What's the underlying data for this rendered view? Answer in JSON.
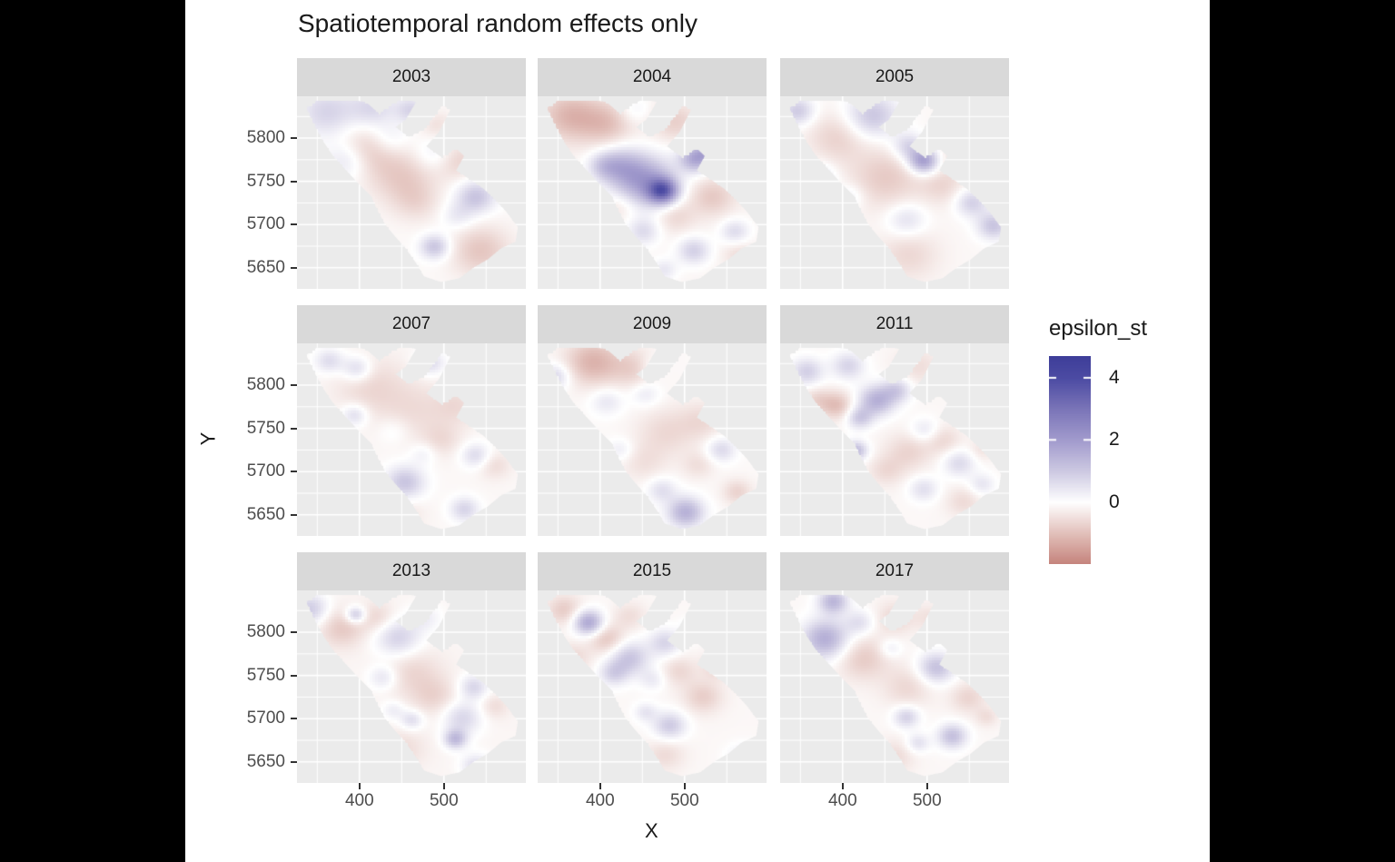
{
  "title": "Spatiotemporal random effects only",
  "theme": {
    "page_background": "#000000",
    "canvas_background": "#ffffff",
    "panel_background": "#ebebeb",
    "strip_background": "#d9d9d9",
    "grid_color": "#ffffff",
    "tick_text_color": "#4d4d4d",
    "tick_mark_color": "#333333",
    "text_color": "#1a1a1a"
  },
  "axes": {
    "x_label": "X",
    "y_label": "Y",
    "x_ticks": [
      {
        "value": 400,
        "label": "400"
      },
      {
        "value": 500,
        "label": "500"
      }
    ],
    "x_minor": [
      350,
      450,
      550
    ],
    "x_range": [
      326,
      597
    ],
    "y_ticks": [
      {
        "value": 5800,
        "label": "5800"
      },
      {
        "value": 5750,
        "label": "5750"
      },
      {
        "value": 5700,
        "label": "5700"
      },
      {
        "value": 5650,
        "label": "5650"
      }
    ],
    "y_minor": [
      5625,
      5675,
      5725,
      5775,
      5825
    ],
    "y_range": [
      5625.6,
      5848.4
    ]
  },
  "legend": {
    "title": "epsilon_st",
    "ticks": [
      {
        "value": 4,
        "label": "4"
      },
      {
        "value": 2,
        "label": "2"
      },
      {
        "value": 0,
        "label": "0"
      }
    ],
    "range": [
      -2.0,
      4.7
    ]
  },
  "chart_data": {
    "type": "heatmap",
    "title": "Spatiotemporal random effects only",
    "xlabel": "X",
    "ylabel": "Y",
    "fill_variable": "epsilon_st",
    "fill_limits": [
      -2.0,
      4.7
    ],
    "color_stops": [
      [
        -2.0,
        "#c5837c"
      ],
      [
        -1.0,
        "#e2c0ba"
      ],
      [
        0.0,
        "#ffffff"
      ],
      [
        1.0,
        "#cdc9e2"
      ],
      [
        2.0,
        "#a29bcd"
      ],
      [
        3.0,
        "#7b75b8"
      ],
      [
        4.0,
        "#4c4ba3"
      ],
      [
        4.7,
        "#3e3e99"
      ]
    ],
    "facets": [
      "2003",
      "2004",
      "2005",
      "2007",
      "2009",
      "2011",
      "2013",
      "2015",
      "2017"
    ],
    "region_polygon": [
      [
        0.04,
        0.06
      ],
      [
        0.09,
        0.02
      ],
      [
        0.2,
        0.015
      ],
      [
        0.3,
        0.03
      ],
      [
        0.36,
        0.09
      ],
      [
        0.41,
        0.04
      ],
      [
        0.465,
        0.015
      ],
      [
        0.52,
        0.03
      ],
      [
        0.475,
        0.12
      ],
      [
        0.43,
        0.16
      ],
      [
        0.49,
        0.21
      ],
      [
        0.555,
        0.17
      ],
      [
        0.6,
        0.1
      ],
      [
        0.635,
        0.045
      ],
      [
        0.67,
        0.07
      ],
      [
        0.62,
        0.185
      ],
      [
        0.565,
        0.26
      ],
      [
        0.63,
        0.315
      ],
      [
        0.695,
        0.27
      ],
      [
        0.73,
        0.31
      ],
      [
        0.695,
        0.385
      ],
      [
        0.755,
        0.43
      ],
      [
        0.815,
        0.48
      ],
      [
        0.87,
        0.54
      ],
      [
        0.915,
        0.6
      ],
      [
        0.965,
        0.68
      ],
      [
        0.955,
        0.755
      ],
      [
        0.89,
        0.79
      ],
      [
        0.835,
        0.845
      ],
      [
        0.77,
        0.89
      ],
      [
        0.71,
        0.945
      ],
      [
        0.63,
        0.965
      ],
      [
        0.555,
        0.935
      ],
      [
        0.52,
        0.865
      ],
      [
        0.475,
        0.79
      ],
      [
        0.43,
        0.73
      ],
      [
        0.385,
        0.665
      ],
      [
        0.35,
        0.59
      ],
      [
        0.325,
        0.52
      ],
      [
        0.27,
        0.455
      ],
      [
        0.22,
        0.39
      ],
      [
        0.16,
        0.315
      ],
      [
        0.115,
        0.235
      ],
      [
        0.075,
        0.15
      ]
    ],
    "fields": {
      "2003": {
        "base": -0.1,
        "blobs": [
          [
            0.13,
            0.08,
            0.09,
            0.9
          ],
          [
            0.33,
            0.06,
            0.07,
            0.8
          ],
          [
            0.5,
            0.07,
            0.05,
            0.9
          ],
          [
            0.22,
            0.33,
            0.07,
            0.8
          ],
          [
            0.4,
            0.22,
            0.06,
            0.5
          ],
          [
            0.6,
            0.3,
            0.06,
            0.5
          ],
          [
            0.78,
            0.52,
            0.06,
            1.2
          ],
          [
            0.6,
            0.78,
            0.045,
            1.2
          ],
          [
            0.7,
            0.62,
            0.05,
            0.5
          ],
          [
            0.3,
            0.28,
            0.09,
            -0.8
          ],
          [
            0.46,
            0.42,
            0.1,
            -0.7
          ],
          [
            0.7,
            0.33,
            0.07,
            -0.6
          ],
          [
            0.8,
            0.8,
            0.09,
            -0.8
          ],
          [
            0.52,
            0.55,
            0.07,
            -0.4
          ],
          [
            0.6,
            0.14,
            0.05,
            -0.4
          ]
        ]
      },
      "2004": {
        "base": -0.15,
        "blobs": [
          [
            0.47,
            0.44,
            0.09,
            2.0
          ],
          [
            0.545,
            0.49,
            0.045,
            3.0
          ],
          [
            0.36,
            0.36,
            0.07,
            1.2
          ],
          [
            0.69,
            0.32,
            0.05,
            1.9
          ],
          [
            0.76,
            0.28,
            0.04,
            1.2
          ],
          [
            0.285,
            0.36,
            0.05,
            0.8
          ],
          [
            0.46,
            0.7,
            0.05,
            0.8
          ],
          [
            0.68,
            0.8,
            0.05,
            1.0
          ],
          [
            0.86,
            0.7,
            0.045,
            0.8
          ],
          [
            0.55,
            0.9,
            0.04,
            0.6
          ],
          [
            0.42,
            0.07,
            0.05,
            0.4
          ],
          [
            0.14,
            0.1,
            0.09,
            -1.0
          ],
          [
            0.3,
            0.14,
            0.08,
            -0.8
          ],
          [
            0.6,
            0.13,
            0.07,
            -0.6
          ],
          [
            0.76,
            0.52,
            0.07,
            -0.7
          ],
          [
            0.6,
            0.62,
            0.06,
            -0.5
          ],
          [
            0.36,
            0.57,
            0.05,
            -0.4
          ],
          [
            0.88,
            0.82,
            0.05,
            -0.4
          ]
        ]
      },
      "2005": {
        "base": -0.12,
        "blobs": [
          [
            0.075,
            0.075,
            0.05,
            1.1
          ],
          [
            0.4,
            0.1,
            0.08,
            1.2
          ],
          [
            0.625,
            0.335,
            0.045,
            2.1
          ],
          [
            0.56,
            0.26,
            0.05,
            1.0
          ],
          [
            0.165,
            0.42,
            0.05,
            0.9
          ],
          [
            0.835,
            0.55,
            0.05,
            1.0
          ],
          [
            0.93,
            0.67,
            0.05,
            1.2
          ],
          [
            0.55,
            0.64,
            0.06,
            0.7
          ],
          [
            0.3,
            0.52,
            0.045,
            0.5
          ],
          [
            0.25,
            0.21,
            0.09,
            -0.6
          ],
          [
            0.46,
            0.42,
            0.11,
            -0.7
          ],
          [
            0.71,
            0.46,
            0.07,
            -0.5
          ],
          [
            0.56,
            0.82,
            0.09,
            -0.5
          ],
          [
            0.78,
            0.3,
            0.06,
            -0.4
          ]
        ]
      },
      "2007": {
        "base": -0.12,
        "blobs": [
          [
            0.14,
            0.09,
            0.045,
            0.8
          ],
          [
            0.26,
            0.13,
            0.045,
            0.9
          ],
          [
            0.58,
            0.1,
            0.045,
            0.8
          ],
          [
            0.25,
            0.37,
            0.04,
            0.8
          ],
          [
            0.47,
            0.72,
            0.06,
            1.2
          ],
          [
            0.73,
            0.86,
            0.045,
            0.9
          ],
          [
            0.78,
            0.58,
            0.045,
            0.8
          ],
          [
            0.55,
            0.57,
            0.04,
            0.4
          ],
          [
            0.42,
            0.45,
            0.05,
            0.3
          ],
          [
            0.32,
            0.22,
            0.11,
            -0.5
          ],
          [
            0.52,
            0.35,
            0.11,
            -0.4
          ],
          [
            0.7,
            0.32,
            0.07,
            -0.4
          ],
          [
            0.63,
            0.5,
            0.06,
            -0.4
          ],
          [
            0.86,
            0.63,
            0.05,
            -0.45
          ],
          [
            0.47,
            0.88,
            0.06,
            -0.3
          ]
        ]
      },
      "2009": {
        "base": -0.1,
        "blobs": [
          [
            0.075,
            0.17,
            0.045,
            0.9
          ],
          [
            0.3,
            0.3,
            0.05,
            0.55
          ],
          [
            0.47,
            0.26,
            0.045,
            0.5
          ],
          [
            0.8,
            0.55,
            0.045,
            0.8
          ],
          [
            0.645,
            0.875,
            0.055,
            1.6
          ],
          [
            0.54,
            0.76,
            0.045,
            0.7
          ],
          [
            0.36,
            0.55,
            0.04,
            0.45
          ],
          [
            0.5,
            0.12,
            0.04,
            0.4
          ],
          [
            0.24,
            0.095,
            0.085,
            -1.1
          ],
          [
            0.42,
            0.13,
            0.07,
            -0.6
          ],
          [
            0.56,
            0.46,
            0.09,
            -0.5
          ],
          [
            0.72,
            0.4,
            0.07,
            -0.45
          ],
          [
            0.87,
            0.77,
            0.045,
            -0.6
          ],
          [
            0.46,
            0.62,
            0.07,
            -0.35
          ],
          [
            0.7,
            0.63,
            0.05,
            -0.4
          ]
        ]
      },
      "2011": {
        "base": -0.12,
        "blobs": [
          [
            0.115,
            0.145,
            0.05,
            1.0
          ],
          [
            0.295,
            0.115,
            0.05,
            0.9
          ],
          [
            0.42,
            0.295,
            0.055,
            1.6
          ],
          [
            0.345,
            0.385,
            0.04,
            1.1
          ],
          [
            0.51,
            0.24,
            0.045,
            1.0
          ],
          [
            0.33,
            0.555,
            0.035,
            1.4
          ],
          [
            0.63,
            0.45,
            0.045,
            0.6
          ],
          [
            0.78,
            0.62,
            0.05,
            0.8
          ],
          [
            0.625,
            0.755,
            0.045,
            0.7
          ],
          [
            0.88,
            0.73,
            0.04,
            0.6
          ],
          [
            0.245,
            0.32,
            0.05,
            -0.9
          ],
          [
            0.155,
            0.29,
            0.045,
            -0.5
          ],
          [
            0.56,
            0.56,
            0.07,
            -0.55
          ],
          [
            0.71,
            0.5,
            0.055,
            -0.5
          ],
          [
            0.46,
            0.66,
            0.055,
            -0.45
          ],
          [
            0.8,
            0.82,
            0.055,
            -0.45
          ],
          [
            0.6,
            0.12,
            0.07,
            -0.4
          ],
          [
            0.88,
            0.55,
            0.04,
            -0.35
          ]
        ]
      },
      "2013": {
        "base": -0.15,
        "blobs": [
          [
            0.055,
            0.095,
            0.055,
            1.1
          ],
          [
            0.255,
            0.125,
            0.03,
            1.3
          ],
          [
            0.44,
            0.245,
            0.07,
            1.0
          ],
          [
            0.375,
            0.45,
            0.045,
            0.7
          ],
          [
            0.77,
            0.5,
            0.045,
            0.9
          ],
          [
            0.72,
            0.66,
            0.06,
            0.9
          ],
          [
            0.69,
            0.77,
            0.035,
            1.4
          ],
          [
            0.5,
            0.67,
            0.035,
            0.8
          ],
          [
            0.42,
            0.62,
            0.035,
            0.5
          ],
          [
            0.78,
            0.91,
            0.045,
            0.8
          ],
          [
            0.56,
            0.14,
            0.05,
            0.45
          ],
          [
            0.195,
            0.195,
            0.07,
            -0.7
          ],
          [
            0.35,
            0.14,
            0.055,
            -0.5
          ],
          [
            0.5,
            0.42,
            0.09,
            -0.5
          ],
          [
            0.6,
            0.55,
            0.07,
            -0.5
          ],
          [
            0.46,
            0.82,
            0.07,
            -0.4
          ],
          [
            0.86,
            0.6,
            0.045,
            -0.4
          ]
        ]
      },
      "2015": {
        "base": -0.12,
        "blobs": [
          [
            0.22,
            0.165,
            0.045,
            1.9
          ],
          [
            0.4,
            0.35,
            0.06,
            1.2
          ],
          [
            0.33,
            0.43,
            0.045,
            0.9
          ],
          [
            0.555,
            0.27,
            0.05,
            0.9
          ],
          [
            0.5,
            0.46,
            0.04,
            0.5
          ],
          [
            0.575,
            0.7,
            0.05,
            1.1
          ],
          [
            0.47,
            0.63,
            0.035,
            0.6
          ],
          [
            0.9,
            0.875,
            0.05,
            0.7
          ],
          [
            0.68,
            0.195,
            0.035,
            0.6
          ],
          [
            0.115,
            0.1,
            0.055,
            -0.7
          ],
          [
            0.3,
            0.25,
            0.055,
            -0.8
          ],
          [
            0.15,
            0.35,
            0.055,
            -0.5
          ],
          [
            0.615,
            0.415,
            0.055,
            -0.5
          ],
          [
            0.72,
            0.55,
            0.06,
            -0.65
          ],
          [
            0.78,
            0.395,
            0.045,
            -0.5
          ],
          [
            0.555,
            0.85,
            0.06,
            -0.45
          ],
          [
            0.4,
            0.13,
            0.05,
            -0.4
          ]
        ]
      },
      "2017": {
        "base": -0.12,
        "blobs": [
          [
            0.23,
            0.055,
            0.045,
            1.5
          ],
          [
            0.195,
            0.25,
            0.07,
            1.7
          ],
          [
            0.345,
            0.165,
            0.045,
            0.7
          ],
          [
            0.68,
            0.4,
            0.055,
            1.3
          ],
          [
            0.55,
            0.655,
            0.04,
            1.0
          ],
          [
            0.75,
            0.755,
            0.045,
            1.3
          ],
          [
            0.6,
            0.79,
            0.035,
            0.7
          ],
          [
            0.48,
            0.3,
            0.035,
            0.5
          ],
          [
            0.36,
            0.35,
            0.08,
            -0.7
          ],
          [
            0.5,
            0.14,
            0.06,
            -0.5
          ],
          [
            0.555,
            0.5,
            0.075,
            -0.5
          ],
          [
            0.82,
            0.555,
            0.055,
            -0.55
          ],
          [
            0.5,
            0.86,
            0.06,
            -0.45
          ],
          [
            0.9,
            0.655,
            0.035,
            -0.4
          ],
          [
            0.655,
            0.14,
            0.05,
            -0.35
          ]
        ]
      }
    }
  }
}
